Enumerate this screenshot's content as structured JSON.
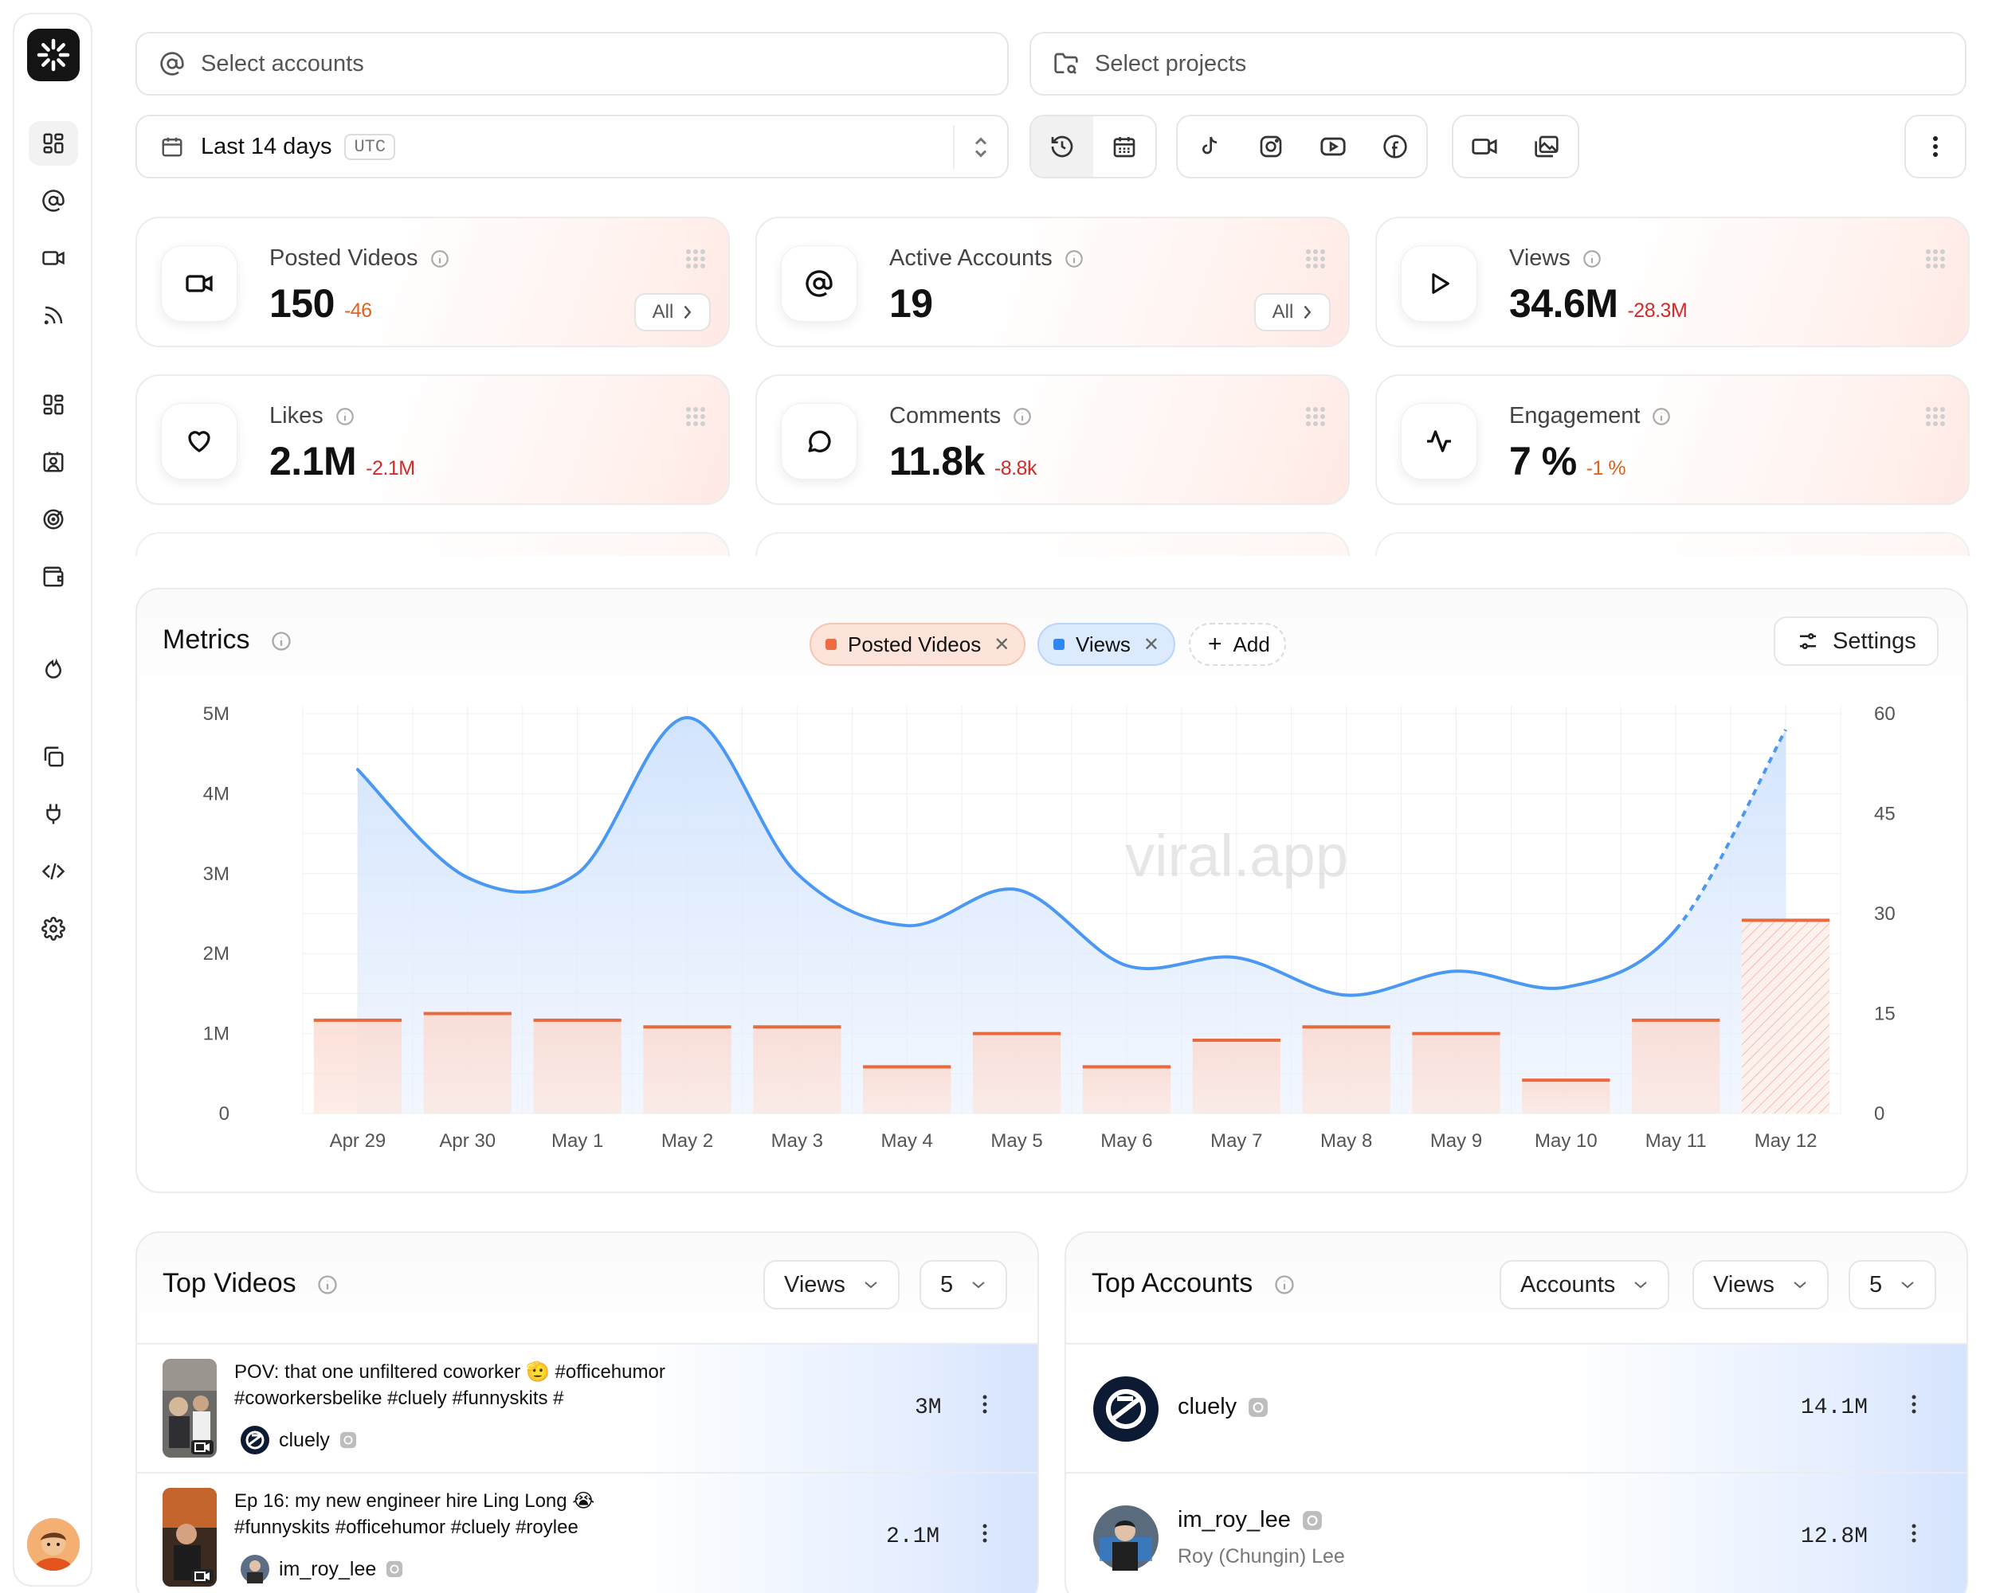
{
  "filters": {
    "accounts_placeholder": "Select accounts",
    "projects_placeholder": "Select projects",
    "date_range": "Last 14 days",
    "timezone": "UTC"
  },
  "sidebar": {
    "items": [
      {
        "icon": "dashboard-icon",
        "active": true
      },
      {
        "icon": "at-sign-icon"
      },
      {
        "icon": "video-icon"
      },
      {
        "icon": "rss-icon"
      },
      {
        "icon": "grid-icon"
      },
      {
        "icon": "contact-card-icon"
      },
      {
        "icon": "target-icon"
      },
      {
        "icon": "wallet-icon"
      },
      {
        "icon": "flame-icon"
      },
      {
        "icon": "copy-icon"
      },
      {
        "icon": "plug-icon"
      },
      {
        "icon": "code-icon"
      },
      {
        "icon": "settings-gear-icon"
      }
    ]
  },
  "kpis": [
    {
      "label": "Posted Videos",
      "value": "150",
      "delta": "-46",
      "delta_color": "#e0621c",
      "action": "All"
    },
    {
      "label": "Active Accounts",
      "value": "19",
      "delta": "",
      "delta_color": "#e0621c",
      "action": "All"
    },
    {
      "label": "Views",
      "value": "34.6M",
      "delta": "-28.3M",
      "delta_color": "#d42a2a"
    },
    {
      "label": "Likes",
      "value": "2.1M",
      "delta": "-2.1M",
      "delta_color": "#d42a2a"
    },
    {
      "label": "Comments",
      "value": "11.8k",
      "delta": "-8.8k",
      "delta_color": "#d42a2a"
    },
    {
      "label": "Engagement",
      "value": "7 %",
      "delta": "-1 %",
      "delta_color": "#e0621c"
    }
  ],
  "metrics": {
    "title": "Metrics",
    "chips": [
      {
        "label": "Posted Videos",
        "color": "#ef6c42"
      },
      {
        "label": "Views",
        "color": "#2e86f5"
      }
    ],
    "add_label": "Add",
    "settings_label": "Settings",
    "watermark": "viral.app"
  },
  "chart_data": {
    "type": "bar+line",
    "categories": [
      "Apr 29",
      "Apr 30",
      "May 1",
      "May 2",
      "May 3",
      "May 4",
      "May 5",
      "May 6",
      "May 7",
      "May 8",
      "May 9",
      "May 10",
      "May 11",
      "May 12"
    ],
    "series": [
      {
        "name": "Posted Videos",
        "type": "bar",
        "axis": "right",
        "values": [
          14,
          15,
          14,
          13,
          13,
          7,
          12,
          7,
          11,
          13,
          12,
          5,
          14,
          29
        ],
        "last_partial": true
      },
      {
        "name": "Views",
        "type": "area-line",
        "axis": "left",
        "values": [
          4300000,
          2950000,
          3000000,
          4950000,
          3000000,
          2350000,
          2800000,
          1850000,
          1950000,
          1480000,
          1780000,
          1580000,
          2300000,
          4800000
        ],
        "last_segment_dashed": true
      }
    ],
    "left_axis": {
      "ticks": [
        "0",
        "1M",
        "2M",
        "3M",
        "4M",
        "5M"
      ],
      "ylim": [
        0,
        5000000
      ]
    },
    "right_axis": {
      "ticks": [
        "0",
        "15",
        "30",
        "45",
        "60"
      ],
      "ylim": [
        0,
        60
      ]
    },
    "grid": true
  },
  "top_videos": {
    "title": "Top Videos",
    "sort": "Views",
    "count": "5",
    "items": [
      {
        "title_line1": "POV: that one unfiltered coworker 🫡 #officehumor",
        "title_line2": "#coworkersbelike #cluely #funnyskits #",
        "account": "cluely",
        "views": "3M"
      },
      {
        "title_line1": "Ep 16: my new engineer hire Ling Long 😭",
        "title_line2": "#funnyskits #officehumor #cluely #roylee",
        "account": "im_roy_lee",
        "views": "2.1M"
      }
    ]
  },
  "top_accounts": {
    "title": "Top Accounts",
    "group": "Accounts",
    "sort": "Views",
    "count": "5",
    "items": [
      {
        "name": "cluely",
        "subtitle": "",
        "views": "14.1M"
      },
      {
        "name": "im_roy_lee",
        "subtitle": "Roy (Chungin) Lee",
        "views": "12.8M"
      }
    ]
  }
}
